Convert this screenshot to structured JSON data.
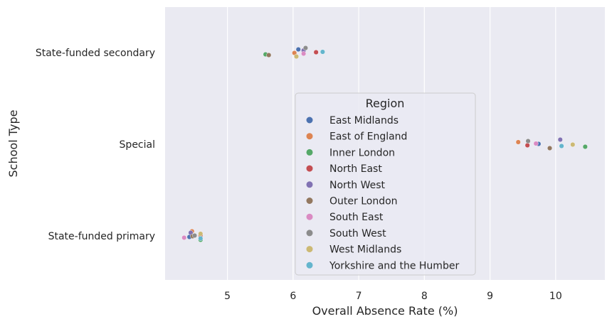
{
  "chart_data": {
    "type": "scatter",
    "subtype": "strip",
    "xlabel": "Overall Absence Rate (%)",
    "ylabel": "School Type",
    "xlim": [
      4.05,
      10.75
    ],
    "xticks": [
      5,
      6,
      7,
      8,
      9,
      10
    ],
    "categories": [
      "State-funded secondary",
      "Special",
      "State-funded primary"
    ],
    "grid": true,
    "legend": {
      "title": "Region",
      "placement": "center"
    },
    "series": [
      {
        "name": "East Midlands",
        "color": "#4c72b0",
        "values": [
          6.08,
          9.74,
          4.42
        ]
      },
      {
        "name": "East of England",
        "color": "#dd8452",
        "values": [
          6.02,
          9.43,
          4.46
        ]
      },
      {
        "name": "Inner London",
        "color": "#55a868",
        "values": [
          5.58,
          10.45,
          4.59
        ]
      },
      {
        "name": "North East",
        "color": "#c44e52",
        "values": [
          6.35,
          9.57,
          4.59
        ]
      },
      {
        "name": "North West",
        "color": "#8172b3",
        "values": [
          6.16,
          10.07,
          4.44
        ]
      },
      {
        "name": "Outer London",
        "color": "#937860",
        "values": [
          5.63,
          9.91,
          4.47
        ]
      },
      {
        "name": "South East",
        "color": "#da8bc3",
        "values": [
          6.16,
          9.7,
          4.34
        ]
      },
      {
        "name": "South West",
        "color": "#8c8c8c",
        "values": [
          6.19,
          9.58,
          4.5
        ]
      },
      {
        "name": "West Midlands",
        "color": "#ccb974",
        "values": [
          6.05,
          10.26,
          4.59
        ]
      },
      {
        "name": "Yorkshire and the Humber",
        "color": "#64b5cd",
        "values": [
          6.45,
          10.09,
          4.59
        ]
      }
    ]
  }
}
